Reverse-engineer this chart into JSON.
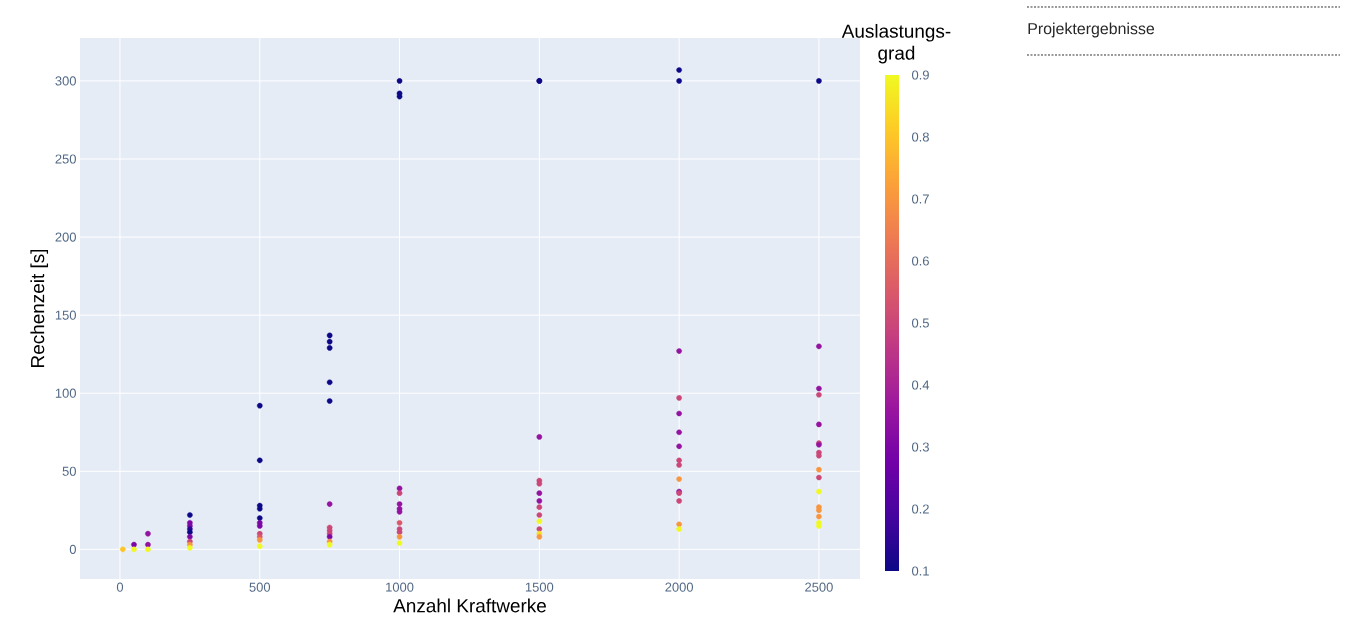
{
  "chart_data": {
    "type": "scatter",
    "xlabel": "Anzahl Kraftwerke",
    "ylabel": "Rechenzeit [s]",
    "clabel": "Auslastungs-grad",
    "annotations": [
      "Projektergebnisse"
    ],
    "x": [
      10,
      50,
      50,
      100,
      100,
      100,
      250,
      250,
      250,
      250,
      250,
      250,
      250,
      250,
      250,
      500,
      500,
      500,
      500,
      500,
      500,
      500,
      500,
      500,
      500,
      500,
      750,
      750,
      750,
      750,
      750,
      750,
      750,
      750,
      750,
      750,
      750,
      750,
      1000,
      1000,
      1000,
      1000,
      1000,
      1000,
      1000,
      1000,
      1000,
      1000,
      1000,
      1000,
      1000,
      1500,
      1500,
      1500,
      1500,
      1500,
      1500,
      1500,
      1500,
      1500,
      1500,
      1500,
      1500,
      1500,
      2000,
      2000,
      2000,
      2000,
      2000,
      2000,
      2000,
      2000,
      2000,
      2000,
      2000,
      2000,
      2000,
      2000,
      2000,
      2500,
      2500,
      2500,
      2500,
      2500,
      2500,
      2500,
      2500,
      2500,
      2500,
      2500,
      2500,
      2500,
      2500,
      2500,
      2500,
      2500
    ],
    "values": [
      0,
      3,
      0,
      10,
      3,
      0,
      22,
      17,
      15,
      13,
      11,
      8,
      5,
      3,
      1,
      92,
      57,
      28,
      26,
      20,
      17,
      15,
      10,
      8,
      6,
      2,
      137,
      133,
      129,
      107,
      95,
      29,
      14,
      12,
      10,
      8,
      5,
      3,
      300,
      292,
      290,
      39,
      36,
      29,
      26,
      24,
      17,
      13,
      11,
      8,
      4,
      300,
      72,
      44,
      42,
      36,
      31,
      27,
      22,
      18,
      13,
      10,
      8,
      300,
      307,
      300,
      127,
      97,
      87,
      75,
      66,
      57,
      54,
      45,
      37,
      36,
      31,
      16,
      13,
      300,
      130,
      103,
      99,
      80,
      68,
      67,
      62,
      60,
      51,
      46,
      37,
      27,
      25,
      21,
      17,
      15
    ],
    "cvalues": [
      0.8,
      0.3,
      0.9,
      0.35,
      0.35,
      0.9,
      0.1,
      0.3,
      0.3,
      0.15,
      0.1,
      0.3,
      0.5,
      0.7,
      0.9,
      0.1,
      0.1,
      0.1,
      0.1,
      0.1,
      0.3,
      0.3,
      0.5,
      0.55,
      0.7,
      0.9,
      0.1,
      0.1,
      0.1,
      0.1,
      0.1,
      0.35,
      0.5,
      0.5,
      0.5,
      0.3,
      0.7,
      0.9,
      0.1,
      0.1,
      0.1,
      0.35,
      0.5,
      0.35,
      0.35,
      0.35,
      0.55,
      0.5,
      0.5,
      0.7,
      0.9,
      0.1,
      0.35,
      0.5,
      0.5,
      0.35,
      0.35,
      0.5,
      0.5,
      0.9,
      0.5,
      0.85,
      0.7,
      0.1,
      0.1,
      0.1,
      0.35,
      0.5,
      0.35,
      0.35,
      0.35,
      0.5,
      0.5,
      0.7,
      0.35,
      0.5,
      0.5,
      0.7,
      0.9,
      0.1,
      0.35,
      0.35,
      0.5,
      0.35,
      0.5,
      0.35,
      0.5,
      0.5,
      0.7,
      0.5,
      0.9,
      0.7,
      0.7,
      0.7,
      0.9,
      0.9
    ],
    "xlim": [
      -143,
      2647
    ],
    "ylim": [
      -19,
      327.5
    ],
    "xticks": [
      0,
      500,
      1000,
      1500,
      2000,
      2500
    ],
    "yticks": [
      0,
      50,
      100,
      150,
      200,
      250,
      300
    ],
    "clim": [
      0.1,
      0.9
    ],
    "cticks": [
      0.1,
      0.2,
      0.3,
      0.4,
      0.5,
      0.6,
      0.7,
      0.8,
      0.9
    ],
    "grid": true,
    "marker": "circle"
  }
}
